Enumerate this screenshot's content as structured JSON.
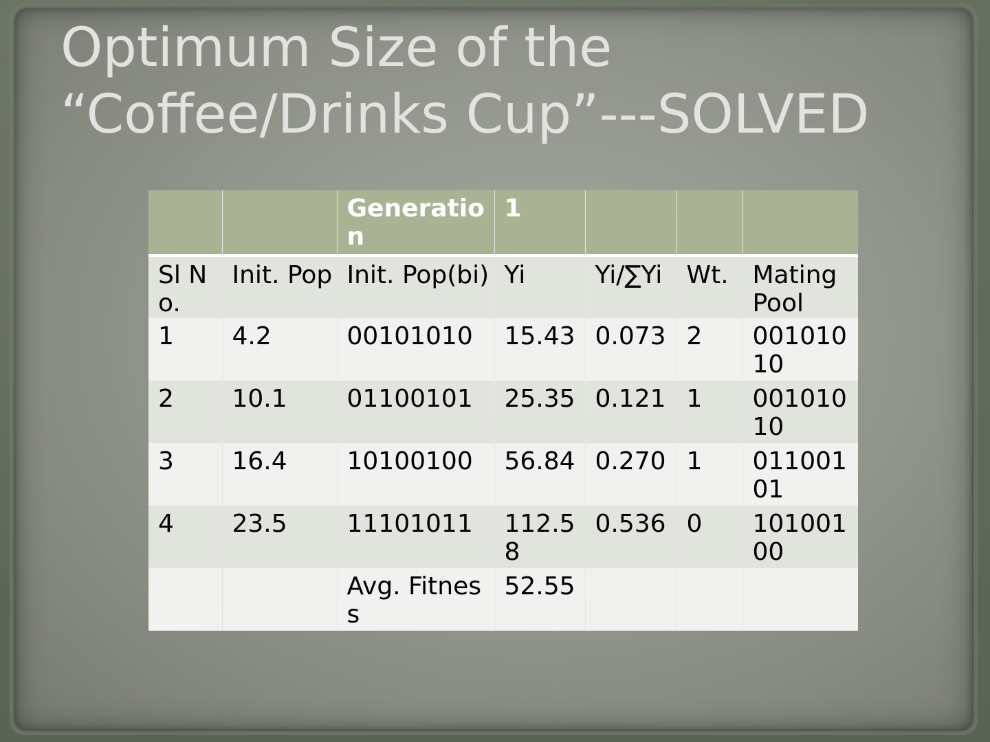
{
  "title": {
    "line1": "Optimum Size of the",
    "line2": "“Coffee/Drinks Cup”---SOLVED"
  },
  "table": {
    "header": [
      "",
      "",
      "Generation",
      "1",
      "",
      "",
      ""
    ],
    "columns": [
      "Sl No.",
      "Init. Pop",
      "Init. Pop(bi)",
      "Yi",
      "Yi/∑Yi",
      "Wt.",
      "Mating Pool"
    ],
    "rows": [
      [
        "1",
        "4.2",
        "00101010",
        "15.43",
        "0.073",
        "2",
        "00101010"
      ],
      [
        "2",
        "10.1",
        "01100101",
        "25.35",
        "0.121",
        "1",
        "00101010"
      ],
      [
        "3",
        "16.4",
        "10100100",
        "56.84",
        "0.270",
        "1",
        "01100101"
      ],
      [
        "4",
        "23.5",
        "11101011",
        "112.58",
        "0.536",
        "0",
        "10100100"
      ]
    ],
    "footer": [
      "",
      "",
      "Avg. Fitness",
      "52.55",
      "",
      "",
      ""
    ]
  },
  "colors": {
    "header_bg": "#a9b394",
    "row_light": "#f1f1f0",
    "row_dark": "#e1e3dd",
    "title_text": "#e2e3e0"
  }
}
